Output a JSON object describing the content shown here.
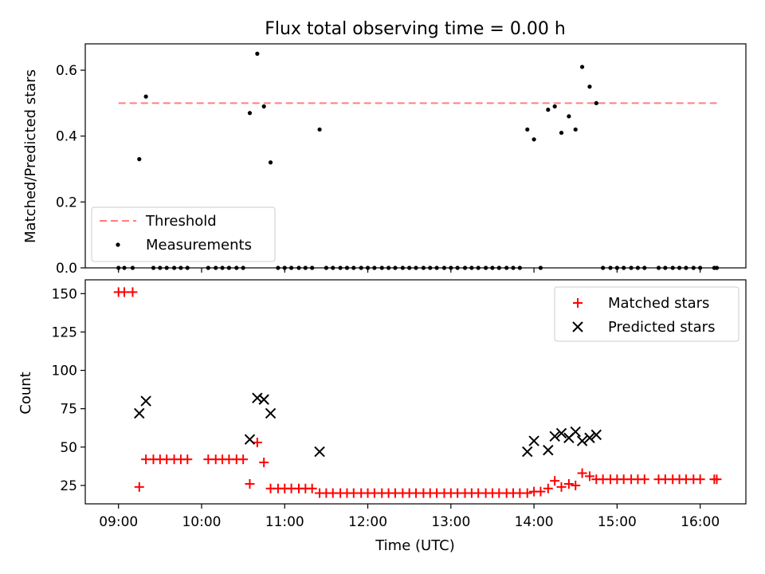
{
  "chart_data": [
    {
      "type": "scatter",
      "title": "Flux total observing time = 0.00 h",
      "xlabel": "",
      "ylabel": "Matched/Predicted stars",
      "ylim": [
        0,
        0.68
      ],
      "yticks": [
        "0.0",
        "0.2",
        "0.4",
        "0.6"
      ],
      "xticks": [
        "09:00",
        "10:00",
        "11:00",
        "12:00",
        "13:00",
        "14:00",
        "15:00",
        "16:00"
      ],
      "xlim_hours": [
        8.6,
        16.55
      ],
      "legend_position": "lower-left",
      "threshold": {
        "name": "Threshold",
        "value": 0.5,
        "x_range": [
          9.0,
          16.2
        ],
        "color": "#ff7f7f"
      },
      "series": [
        {
          "name": "Measurements",
          "color": "#000000",
          "x": [
            9.0,
            9.07,
            9.17,
            9.25,
            9.33,
            9.42,
            9.5,
            9.58,
            9.67,
            9.75,
            9.83,
            10.08,
            10.17,
            10.25,
            10.33,
            10.42,
            10.5,
            10.58,
            10.67,
            10.75,
            10.83,
            10.92,
            11.0,
            11.08,
            11.17,
            11.25,
            11.33,
            11.42,
            11.5,
            11.58,
            11.67,
            11.75,
            11.83,
            11.92,
            12.0,
            12.08,
            12.17,
            12.25,
            12.33,
            12.42,
            12.5,
            12.58,
            12.67,
            12.75,
            12.83,
            12.92,
            13.0,
            13.08,
            13.17,
            13.25,
            13.33,
            13.42,
            13.5,
            13.58,
            13.67,
            13.75,
            13.83,
            13.92,
            14.0,
            14.08,
            14.17,
            14.25,
            14.33,
            14.42,
            14.5,
            14.58,
            14.67,
            14.75,
            14.83,
            14.92,
            15.0,
            15.08,
            15.17,
            15.25,
            15.33,
            15.5,
            15.58,
            15.67,
            15.75,
            15.83,
            15.92,
            16.0,
            16.17,
            16.2
          ],
          "y": [
            0,
            0,
            0,
            0.33,
            0.52,
            0,
            0,
            0,
            0,
            0,
            0,
            0,
            0,
            0,
            0,
            0,
            0,
            0.47,
            0.65,
            0.49,
            0.32,
            0,
            0,
            0,
            0,
            0,
            0,
            0.42,
            0,
            0,
            0,
            0,
            0,
            0,
            0,
            0,
            0,
            0,
            0,
            0,
            0,
            0,
            0,
            0,
            0,
            0,
            0,
            0,
            0,
            0,
            0,
            0,
            0,
            0,
            0,
            0,
            0,
            0.42,
            0.39,
            0,
            0.48,
            0.49,
            0.41,
            0.46,
            0.42,
            0.61,
            0.55,
            0.5,
            0,
            0,
            0,
            0,
            0,
            0,
            0,
            0,
            0,
            0,
            0,
            0,
            0,
            0,
            0,
            0
          ]
        }
      ]
    },
    {
      "type": "scatter",
      "title": "",
      "xlabel": "Time (UTC)",
      "ylabel": "Count",
      "ylim": [
        13,
        159
      ],
      "yticks": [
        "25",
        "50",
        "75",
        "100",
        "125",
        "150"
      ],
      "xticks": [
        "09:00",
        "10:00",
        "11:00",
        "12:00",
        "13:00",
        "14:00",
        "15:00",
        "16:00"
      ],
      "xlim_hours": [
        8.6,
        16.55
      ],
      "legend_position": "upper-right",
      "series": [
        {
          "name": "Matched stars",
          "marker": "plus",
          "color": "#ff0000",
          "x": [
            9.0,
            9.07,
            9.17,
            9.25,
            9.33,
            9.42,
            9.5,
            9.58,
            9.67,
            9.75,
            9.83,
            10.08,
            10.17,
            10.25,
            10.33,
            10.42,
            10.5,
            10.58,
            10.67,
            10.75,
            10.83,
            10.92,
            11.0,
            11.08,
            11.17,
            11.25,
            11.33,
            11.42,
            11.5,
            11.58,
            11.67,
            11.75,
            11.83,
            11.92,
            12.0,
            12.08,
            12.17,
            12.25,
            12.33,
            12.42,
            12.5,
            12.58,
            12.67,
            12.75,
            12.83,
            12.92,
            13.0,
            13.08,
            13.17,
            13.25,
            13.33,
            13.42,
            13.5,
            13.58,
            13.67,
            13.75,
            13.83,
            13.92,
            14.0,
            14.08,
            14.17,
            14.25,
            14.33,
            14.42,
            14.5,
            14.58,
            14.67,
            14.75,
            14.83,
            14.92,
            15.0,
            15.08,
            15.17,
            15.25,
            15.33,
            15.5,
            15.58,
            15.67,
            15.75,
            15.83,
            15.92,
            16.0,
            16.17,
            16.2
          ],
          "y": [
            151,
            151,
            151,
            24,
            42,
            42,
            42,
            42,
            42,
            42,
            42,
            42,
            42,
            42,
            42,
            42,
            42,
            26,
            53,
            40,
            23,
            23,
            23,
            23,
            23,
            23,
            23,
            20,
            20,
            20,
            20,
            20,
            20,
            20,
            20,
            20,
            20,
            20,
            20,
            20,
            20,
            20,
            20,
            20,
            20,
            20,
            20,
            20,
            20,
            20,
            20,
            20,
            20,
            20,
            20,
            20,
            20,
            20,
            21,
            21,
            23,
            28,
            24,
            26,
            25,
            33,
            31,
            29,
            29,
            29,
            29,
            29,
            29,
            29,
            29,
            29,
            29,
            29,
            29,
            29,
            29,
            29,
            29,
            29
          ]
        },
        {
          "name": "Predicted stars",
          "marker": "x",
          "color": "#000000",
          "x": [
            9.25,
            9.33,
            10.58,
            10.67,
            10.75,
            10.83,
            11.42,
            13.92,
            14.0,
            14.17,
            14.25,
            14.33,
            14.42,
            14.5,
            14.58,
            14.67,
            14.75
          ],
          "y": [
            72,
            80,
            55,
            82,
            81,
            72,
            47,
            47,
            54,
            48,
            57,
            59,
            56,
            60,
            54,
            56,
            58
          ]
        }
      ]
    }
  ]
}
